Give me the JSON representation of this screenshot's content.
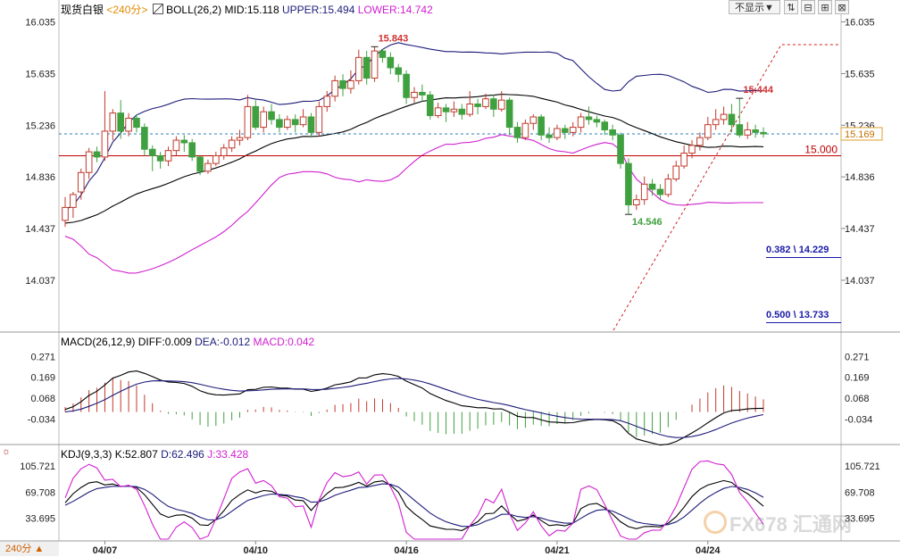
{
  "header": {
    "symbol": "现货白银",
    "period": "<240分>",
    "boll_icon": "boll-indicator-icon",
    "boll_name": "BOLL(26,2)",
    "mid": "MID:15.118",
    "upper": "UPPER:15.494",
    "lower": "LOWER:14.742"
  },
  "toolbar": {
    "hide_label": "不显示▼",
    "buttons": [
      "⇅",
      "⊟",
      "⊞",
      "⊠"
    ]
  },
  "macd_header": {
    "name": "MACD(26,12,9)",
    "diff": "DIFF:0.009",
    "dea": "DEA:-0.012",
    "macd": "MACD:0.042"
  },
  "kdj_header": {
    "name": "KDJ(9,3,3)",
    "k": "K:52.807",
    "d": "D:62.496",
    "j": "J:33.428"
  },
  "period_button": "240分 ▲",
  "watermark": "FX678 汇通网",
  "colors": {
    "up": "#c0392b",
    "down": "#3fa03f",
    "mid": "#000000",
    "upper": "#1c1c7a",
    "lower": "#d020d0",
    "support": "#c00000",
    "current": "#2d7fb8"
  },
  "chart_data": {
    "type": "candlestick",
    "date_ticks": [
      {
        "label": "04/07",
        "index": 5
      },
      {
        "label": "04/10",
        "index": 24
      },
      {
        "label": "04/16",
        "index": 43
      },
      {
        "label": "04/21",
        "index": 62
      },
      {
        "label": "04/24",
        "index": 81
      }
    ],
    "price_axis": {
      "ticks": [
        16.035,
        15.635,
        15.236,
        14.836,
        14.437,
        14.037
      ],
      "range": [
        13.65,
        16.08
      ]
    },
    "candles": [
      [
        14.5,
        14.6,
        14.45,
        14.68
      ],
      [
        14.6,
        14.7,
        14.52,
        14.72
      ],
      [
        14.72,
        14.87,
        14.66,
        14.9
      ],
      [
        14.87,
        15.03,
        14.82,
        15.06
      ],
      [
        15.03,
        14.99,
        14.95,
        15.07
      ],
      [
        14.99,
        15.19,
        14.96,
        15.5
      ],
      [
        15.19,
        15.33,
        15.12,
        15.36
      ],
      [
        15.33,
        15.19,
        15.13,
        15.43
      ],
      [
        15.19,
        15.29,
        15.15,
        15.33
      ],
      [
        15.29,
        15.22,
        15.18,
        15.32
      ],
      [
        15.22,
        15.05,
        15.0,
        15.25
      ],
      [
        15.05,
        15.0,
        14.88,
        15.08
      ],
      [
        15.0,
        14.96,
        14.9,
        15.03
      ],
      [
        14.96,
        15.04,
        14.92,
        15.07
      ],
      [
        15.04,
        15.12,
        15.0,
        15.15
      ],
      [
        15.12,
        15.1,
        15.03,
        15.16
      ],
      [
        15.1,
        14.99,
        14.96,
        15.13
      ],
      [
        14.99,
        14.88,
        14.85,
        15.0
      ],
      [
        14.88,
        14.94,
        14.86,
        14.97
      ],
      [
        14.94,
        15.0,
        14.92,
        15.03
      ],
      [
        15.0,
        15.06,
        14.97,
        15.09
      ],
      [
        15.06,
        15.12,
        15.03,
        15.15
      ],
      [
        15.12,
        15.14,
        15.08,
        15.2
      ],
      [
        15.14,
        15.38,
        15.12,
        15.47
      ],
      [
        15.38,
        15.22,
        15.2,
        15.43
      ],
      [
        15.22,
        15.34,
        15.18,
        15.38
      ],
      [
        15.34,
        15.28,
        15.24,
        15.4
      ],
      [
        15.28,
        15.22,
        15.18,
        15.32
      ],
      [
        15.22,
        15.28,
        15.2,
        15.31
      ],
      [
        15.28,
        15.24,
        15.18,
        15.32
      ],
      [
        15.24,
        15.3,
        15.22,
        15.36
      ],
      [
        15.3,
        15.18,
        15.14,
        15.33
      ],
      [
        15.18,
        15.38,
        15.15,
        15.42
      ],
      [
        15.38,
        15.46,
        15.34,
        15.5
      ],
      [
        15.46,
        15.58,
        15.42,
        15.62
      ],
      [
        15.58,
        15.52,
        15.46,
        15.63
      ],
      [
        15.52,
        15.58,
        15.48,
        15.66
      ],
      [
        15.58,
        15.76,
        15.55,
        15.82
      ],
      [
        15.76,
        15.6,
        15.55,
        15.81
      ],
      [
        15.6,
        15.81,
        15.57,
        15.843
      ],
      [
        15.81,
        15.76,
        15.72,
        15.82
      ],
      [
        15.76,
        15.68,
        15.63,
        15.8
      ],
      [
        15.68,
        15.63,
        15.57,
        15.71
      ],
      [
        15.63,
        15.45,
        15.4,
        15.66
      ],
      [
        15.45,
        15.49,
        15.41,
        15.53
      ],
      [
        15.49,
        15.47,
        15.42,
        15.55
      ],
      [
        15.47,
        15.31,
        15.28,
        15.5
      ],
      [
        15.31,
        15.37,
        15.29,
        15.41
      ],
      [
        15.37,
        15.34,
        15.26,
        15.4
      ],
      [
        15.34,
        15.36,
        15.3,
        15.42
      ],
      [
        15.36,
        15.32,
        15.28,
        15.4
      ],
      [
        15.32,
        15.4,
        15.3,
        15.5
      ],
      [
        15.4,
        15.38,
        15.32,
        15.44
      ],
      [
        15.38,
        15.44,
        15.36,
        15.48
      ],
      [
        15.44,
        15.36,
        15.3,
        15.47
      ],
      [
        15.36,
        15.43,
        15.34,
        15.5
      ],
      [
        15.43,
        15.22,
        15.16,
        15.45
      ],
      [
        15.22,
        15.14,
        15.1,
        15.26
      ],
      [
        15.14,
        15.25,
        15.12,
        15.28
      ],
      [
        15.25,
        15.3,
        15.2,
        15.32
      ],
      [
        15.3,
        15.16,
        15.12,
        15.32
      ],
      [
        15.16,
        15.14,
        15.1,
        15.22
      ],
      [
        15.14,
        15.21,
        15.12,
        15.24
      ],
      [
        15.21,
        15.18,
        15.13,
        15.24
      ],
      [
        15.18,
        15.22,
        15.15,
        15.26
      ],
      [
        15.22,
        15.3,
        15.18,
        15.33
      ],
      [
        15.3,
        15.28,
        15.24,
        15.38
      ],
      [
        15.28,
        15.26,
        15.22,
        15.31
      ],
      [
        15.26,
        15.2,
        15.16,
        15.28
      ],
      [
        15.2,
        15.16,
        15.12,
        15.24
      ],
      [
        15.16,
        14.94,
        14.9,
        15.18
      ],
      [
        14.94,
        14.62,
        14.546,
        14.98
      ],
      [
        14.62,
        14.66,
        14.58,
        14.7
      ],
      [
        14.66,
        14.78,
        14.62,
        14.84
      ],
      [
        14.78,
        14.74,
        14.69,
        14.82
      ],
      [
        14.74,
        14.7,
        14.66,
        14.78
      ],
      [
        14.7,
        14.82,
        14.68,
        14.86
      ],
      [
        14.82,
        14.92,
        14.8,
        14.96
      ],
      [
        14.92,
        15.02,
        14.9,
        15.08
      ],
      [
        15.02,
        15.08,
        14.98,
        15.12
      ],
      [
        15.08,
        15.14,
        15.04,
        15.18
      ],
      [
        15.14,
        15.24,
        15.12,
        15.3
      ],
      [
        15.24,
        15.28,
        15.2,
        15.36
      ],
      [
        15.28,
        15.32,
        15.24,
        15.38
      ],
      [
        15.32,
        15.24,
        15.18,
        15.4
      ],
      [
        15.24,
        15.16,
        15.14,
        15.444
      ],
      [
        15.16,
        15.2,
        15.13,
        15.26
      ],
      [
        15.2,
        15.18,
        15.14,
        15.24
      ],
      [
        15.18,
        15.169,
        15.14,
        15.22
      ]
    ],
    "annotations": [
      {
        "text": "15.843",
        "color": "#d23030"
      },
      {
        "text": "15.444",
        "color": "#d23030"
      },
      {
        "text": "14.546",
        "color": "#3fa03f"
      }
    ],
    "current_price": 15.169,
    "support_price": 15.0,
    "support_label": "15.000",
    "current_label": "15.169",
    "fib_levels": [
      "0.382 \\ 14.229",
      "0.500 \\ 13.733"
    ],
    "macd_axis": {
      "ticks": [
        0.271,
        0.169,
        0.068,
        -0.034
      ],
      "range": [
        -0.15,
        0.32
      ]
    },
    "kdj_axis": {
      "ticks": [
        105.721,
        69.708,
        33.695
      ],
      "range": [
        5,
        118
      ]
    }
  }
}
